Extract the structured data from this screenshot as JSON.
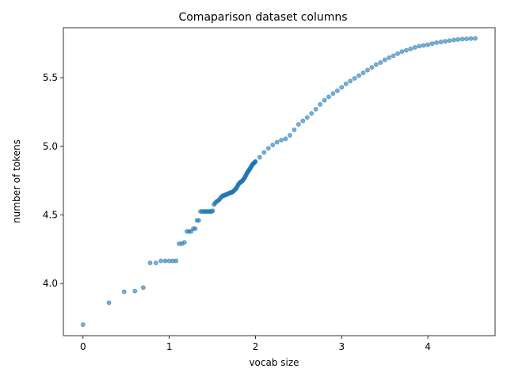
{
  "chart_data": {
    "type": "scatter",
    "title": "Comaparison dataset columns",
    "xlabel": "vocab size",
    "ylabel": "number of tokens",
    "xlim": [
      -0.228,
      4.78
    ],
    "ylim": [
      3.62,
      5.864
    ],
    "xticks": [
      0,
      1,
      2,
      3,
      4
    ],
    "yticks": [
      4.0,
      4.5,
      5.0,
      5.5
    ],
    "xtick_labels": [
      "0",
      "1",
      "2",
      "3",
      "4"
    ],
    "ytick_labels": [
      "4.0",
      "4.5",
      "5.0",
      "5.5"
    ],
    "grid": false,
    "legend": "none",
    "marker_color": "#1f77b4",
    "series": [
      {
        "x": [
          0.0,
          0.301,
          0.477,
          0.602,
          0.699,
          0.778,
          0.845,
          0.903,
          0.954,
          1.0,
          1.041,
          1.079,
          1.114,
          1.146,
          1.176,
          1.204,
          1.23,
          1.255,
          1.279,
          1.301,
          1.322,
          1.342,
          1.362,
          1.38,
          1.398,
          1.415,
          1.431,
          1.447,
          1.462,
          1.477,
          1.491,
          1.505,
          1.519,
          1.531,
          1.544,
          1.556,
          1.568,
          1.58,
          1.591,
          1.602,
          1.613,
          1.623,
          1.633,
          1.643,
          1.653,
          1.663,
          1.672,
          1.681,
          1.69,
          1.699,
          1.708,
          1.716,
          1.724,
          1.732,
          1.74,
          1.748,
          1.756,
          1.763,
          1.771,
          1.778,
          1.785,
          1.792,
          1.799,
          1.806,
          1.813,
          1.82,
          1.826,
          1.833,
          1.839,
          1.845,
          1.851,
          1.857,
          1.863,
          1.869,
          1.875,
          1.881,
          1.886,
          1.892,
          1.898,
          1.903,
          1.908,
          1.914,
          1.919,
          1.924,
          1.929,
          1.934,
          1.939,
          1.944,
          1.949,
          1.954,
          1.959,
          1.964,
          1.968,
          1.973,
          1.978,
          1.982,
          1.987,
          1.991,
          1.996,
          2.0,
          2.05,
          2.1,
          2.15,
          2.2,
          2.25,
          2.3,
          2.35,
          2.4,
          2.45,
          2.5,
          2.55,
          2.6,
          2.65,
          2.7,
          2.75,
          2.8,
          2.85,
          2.9,
          2.95,
          3.0,
          3.05,
          3.1,
          3.15,
          3.2,
          3.25,
          3.3,
          3.35,
          3.4,
          3.45,
          3.5,
          3.55,
          3.6,
          3.65,
          3.7,
          3.75,
          3.8,
          3.85,
          3.9,
          3.95,
          4.0,
          4.05,
          4.1,
          4.15,
          4.2,
          4.25,
          4.3,
          4.35,
          4.4,
          4.45,
          4.5,
          4.55
        ],
        "y": [
          3.7,
          3.86,
          3.94,
          3.945,
          3.97,
          4.15,
          4.15,
          4.165,
          4.165,
          4.165,
          4.165,
          4.165,
          4.29,
          4.29,
          4.3,
          4.38,
          4.38,
          4.38,
          4.4,
          4.4,
          4.46,
          4.46,
          4.525,
          4.525,
          4.525,
          4.525,
          4.525,
          4.525,
          4.525,
          4.525,
          4.525,
          4.53,
          4.575,
          4.585,
          4.595,
          4.6,
          4.605,
          4.61,
          4.62,
          4.63,
          4.635,
          4.64,
          4.64,
          4.645,
          4.645,
          4.65,
          4.65,
          4.655,
          4.655,
          4.66,
          4.66,
          4.665,
          4.665,
          4.665,
          4.67,
          4.675,
          4.68,
          4.685,
          4.69,
          4.695,
          4.7,
          4.71,
          4.72,
          4.725,
          4.73,
          4.735,
          4.74,
          4.74,
          4.745,
          4.745,
          4.75,
          4.755,
          4.76,
          4.765,
          4.77,
          4.78,
          4.785,
          4.79,
          4.8,
          4.805,
          4.81,
          4.815,
          4.82,
          4.825,
          4.83,
          4.835,
          4.84,
          4.845,
          4.85,
          4.855,
          4.86,
          4.865,
          4.87,
          4.872,
          4.875,
          4.878,
          4.88,
          4.883,
          4.886,
          4.89,
          4.92,
          4.955,
          4.985,
          5.01,
          5.03,
          5.045,
          5.055,
          5.08,
          5.12,
          5.16,
          5.185,
          5.21,
          5.24,
          5.27,
          5.305,
          5.335,
          5.36,
          5.385,
          5.405,
          5.43,
          5.455,
          5.475,
          5.495,
          5.515,
          5.535,
          5.555,
          5.575,
          5.595,
          5.61,
          5.63,
          5.645,
          5.66,
          5.675,
          5.69,
          5.7,
          5.71,
          5.72,
          5.73,
          5.735,
          5.74,
          5.748,
          5.755,
          5.76,
          5.765,
          5.77,
          5.775,
          5.778,
          5.781,
          5.783,
          5.785,
          5.786
        ]
      }
    ]
  }
}
